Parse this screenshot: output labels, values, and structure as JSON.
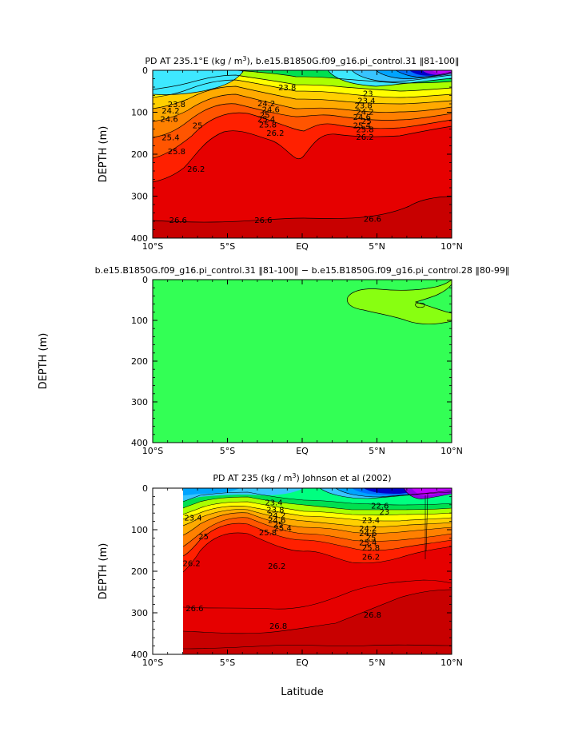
{
  "chart_data": [
    {
      "type": "contour",
      "panel": "top",
      "title": "PD AT 235.1°E (kg / m³), b.e15.B1850G.f09_g16.pi_control.31 ‖81-100‖",
      "title_parts": {
        "pre": "PD AT 235.1°E (kg / m",
        "sup": "3",
        "post": "), b.e15.B1850G.f09_g16.pi_control.31 ‖81-100‖"
      },
      "ylabel": "DEPTH (m)",
      "xlabel": "",
      "xlim": [
        -10,
        10
      ],
      "ylim": [
        0,
        400
      ],
      "x_ticks": [
        -10,
        -5,
        0,
        5,
        10
      ],
      "x_tick_labels": [
        "10°S",
        "5°S",
        "EQ",
        "5°N",
        "10°N"
      ],
      "y_ticks": [
        0,
        100,
        200,
        300,
        400
      ],
      "y_tick_labels": [
        "0",
        "100",
        "200",
        "300",
        "400"
      ],
      "contour_levels": [
        22.0,
        22.2,
        22.4,
        22.6,
        22.8,
        23.0,
        23.2,
        23.4,
        23.6,
        23.8,
        24.0,
        24.2,
        24.4,
        24.6,
        24.8,
        25.0,
        25.2,
        25.4,
        25.6,
        25.8,
        26.0,
        26.2,
        26.4,
        26.6,
        26.8
      ],
      "labels": [
        {
          "text": "23.8",
          "lat": -1.0,
          "depth": 42
        },
        {
          "text": "23.8",
          "lat": -8.4,
          "depth": 82
        },
        {
          "text": "24.2",
          "lat": -8.8,
          "depth": 97
        },
        {
          "text": "24.6",
          "lat": -8.9,
          "depth": 117
        },
        {
          "text": "25",
          "lat": -7.0,
          "depth": 132
        },
        {
          "text": "25.4",
          "lat": -8.8,
          "depth": 161
        },
        {
          "text": "25.8",
          "lat": -8.4,
          "depth": 194
        },
        {
          "text": "26.2",
          "lat": -7.1,
          "depth": 236
        },
        {
          "text": "26.6",
          "lat": -8.3,
          "depth": 358
        },
        {
          "text": "24.2",
          "lat": -2.4,
          "depth": 80
        },
        {
          "text": "24.6",
          "lat": -2.1,
          "depth": 94
        },
        {
          "text": "25",
          "lat": -2.5,
          "depth": 108
        },
        {
          "text": "25.4",
          "lat": -2.4,
          "depth": 117
        },
        {
          "text": "25.8",
          "lat": -2.3,
          "depth": 130
        },
        {
          "text": "26.2",
          "lat": -1.8,
          "depth": 150
        },
        {
          "text": "26.6",
          "lat": -2.6,
          "depth": 358
        },
        {
          "text": "23",
          "lat": 4.4,
          "depth": 56
        },
        {
          "text": "23.4",
          "lat": 4.3,
          "depth": 73
        },
        {
          "text": "23.8",
          "lat": 4.1,
          "depth": 85
        },
        {
          "text": "24.2",
          "lat": 4.2,
          "depth": 100
        },
        {
          "text": "24.6",
          "lat": 4.0,
          "depth": 112
        },
        {
          "text": "25",
          "lat": 4.3,
          "depth": 122
        },
        {
          "text": "25.4",
          "lat": 4.0,
          "depth": 132
        },
        {
          "text": "25.8",
          "lat": 4.2,
          "depth": 142
        },
        {
          "text": "26.2",
          "lat": 4.2,
          "depth": 160
        },
        {
          "text": "26.6",
          "lat": 4.7,
          "depth": 355
        }
      ]
    },
    {
      "type": "contour",
      "panel": "middle",
      "title": "b.e15.B1850G.f09_g16.pi_control.31 ‖81-100‖ − b.e15.B1850G.f09_g16.pi_control.28 ‖80-99‖",
      "ylabel": "DEPTH (m)",
      "xlabel": "",
      "xlim": [
        -10,
        10
      ],
      "ylim": [
        0,
        400
      ],
      "x_ticks": [
        -10,
        -5,
        0,
        5,
        10
      ],
      "x_tick_labels": [
        "10°S",
        "5°S",
        "EQ",
        "5°N",
        "10°N"
      ],
      "y_ticks": [
        0,
        100,
        200,
        300,
        400
      ],
      "y_tick_labels": [
        "0",
        "100",
        "200",
        "300",
        "400"
      ],
      "field": "difference ≈ 0 everywhere; small positive anomaly near 3–10°N, 20–110 m",
      "labels": []
    },
    {
      "type": "contour",
      "panel": "bottom",
      "title": "PD AT 235 (kg / m³) Johnson et al (2002)",
      "title_parts": {
        "pre": "PD AT 235 (kg / m",
        "sup": "3",
        "post": ") Johnson et al (2002)"
      },
      "ylabel": "DEPTH (m)",
      "xlabel": "Latitude",
      "xlim": [
        -10,
        10
      ],
      "ylim": [
        0,
        400
      ],
      "data_start_lat": -8.0,
      "x_ticks": [
        -10,
        -5,
        0,
        5,
        10
      ],
      "x_tick_labels": [
        "10°S",
        "5°S",
        "EQ",
        "5°N",
        "10°N"
      ],
      "y_ticks": [
        0,
        100,
        200,
        300,
        400
      ],
      "y_tick_labels": [
        "0",
        "100",
        "200",
        "300",
        "400"
      ],
      "labels": [
        {
          "text": "23.4",
          "lat": -7.3,
          "depth": 72
        },
        {
          "text": "25",
          "lat": -6.6,
          "depth": 117
        },
        {
          "text": "26.2",
          "lat": -7.4,
          "depth": 182
        },
        {
          "text": "26.6",
          "lat": -7.2,
          "depth": 290
        },
        {
          "text": "23.4",
          "lat": -1.9,
          "depth": 36
        },
        {
          "text": "23.8",
          "lat": -1.8,
          "depth": 53
        },
        {
          "text": "24.2",
          "lat": -1.7,
          "depth": 66
        },
        {
          "text": "24.6",
          "lat": -1.7,
          "depth": 78
        },
        {
          "text": "25",
          "lat": -1.6,
          "depth": 88
        },
        {
          "text": "25.4",
          "lat": -1.3,
          "depth": 97
        },
        {
          "text": "25.8",
          "lat": -2.3,
          "depth": 108
        },
        {
          "text": "26.2",
          "lat": -1.7,
          "depth": 188
        },
        {
          "text": "26.8",
          "lat": -1.6,
          "depth": 333
        },
        {
          "text": "22.6",
          "lat": 5.2,
          "depth": 43
        },
        {
          "text": "23",
          "lat": 5.5,
          "depth": 58
        },
        {
          "text": "23.4",
          "lat": 4.6,
          "depth": 78
        },
        {
          "text": "24.2",
          "lat": 4.4,
          "depth": 98
        },
        {
          "text": "24.6",
          "lat": 4.4,
          "depth": 110
        },
        {
          "text": "25",
          "lat": 4.6,
          "depth": 120
        },
        {
          "text": "25.4",
          "lat": 4.4,
          "depth": 132
        },
        {
          "text": "25.8",
          "lat": 4.6,
          "depth": 144
        },
        {
          "text": "26.2",
          "lat": 4.6,
          "depth": 166
        },
        {
          "text": "26.8",
          "lat": 4.7,
          "depth": 306
        }
      ]
    }
  ],
  "colors": {
    "violet": "#c000ff",
    "purple": "#9000e8",
    "navy": "#0000c8",
    "blue": "#0033ff",
    "royal": "#0070ff",
    "azure": "#00a4ff",
    "sky": "#38c4ff",
    "cyan": "#3ee8ff",
    "aqua": "#00ffcc",
    "seafoam": "#00ff80",
    "green": "#00e050",
    "lime": "#44ff00",
    "chartreuse": "#aaff00",
    "yellow": "#ffff00",
    "gold": "#ffd000",
    "amber": "#ffaa00",
    "orange": "#ff8000",
    "darkorange": "#ff5500",
    "redorange": "#ff2000",
    "red": "#e60000",
    "darkred": "#c80000",
    "diff_zero": "#33ff55",
    "diff_pos": "#88ff11"
  }
}
